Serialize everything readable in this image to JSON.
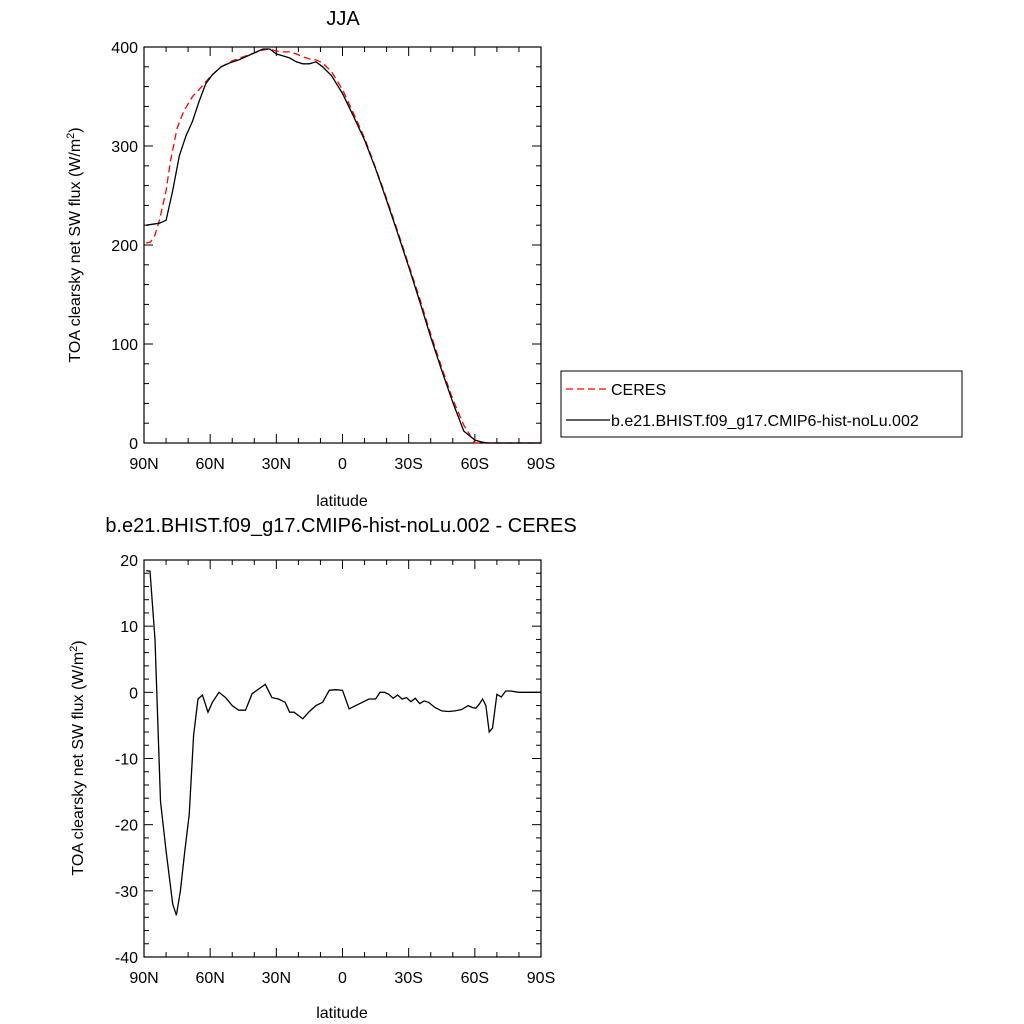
{
  "chart_data": [
    {
      "type": "line",
      "title": "JJA",
      "xlabel": "latitude",
      "ylabel": "TOA clearsky net SW flux (W/m",
      "ylabel_sup": "2",
      "ylabel_close": ")",
      "xlim": [
        90,
        -90
      ],
      "ylim": [
        0,
        400
      ],
      "x_ticks": [
        90,
        60,
        30,
        0,
        -30,
        -60,
        -90
      ],
      "x_tick_labels": [
        "90N",
        "60N",
        "30N",
        "0",
        "30S",
        "60S",
        "90S"
      ],
      "y_ticks": [
        0,
        100,
        200,
        300,
        400
      ],
      "y_tick_labels": [
        "0",
        "100",
        "200",
        "300",
        "400"
      ],
      "grid": false,
      "legend_position": "right",
      "series": [
        {
          "name": "CERES",
          "color": "#ff0000",
          "dash": "dashed",
          "x": [
            89,
            87,
            85,
            83,
            80,
            78,
            75,
            72,
            68,
            65,
            60,
            55,
            50,
            45,
            40,
            36,
            33,
            30,
            27,
            24,
            21,
            18,
            15,
            12,
            9,
            5,
            0,
            -5,
            -10,
            -15,
            -20,
            -25,
            -30,
            -35,
            -40,
            -45,
            -50,
            -55,
            -60,
            -63,
            -66,
            -70,
            -74,
            -78,
            -82,
            -86,
            -90
          ],
          "y": [
            202,
            203,
            210,
            225,
            255,
            285,
            318,
            335,
            350,
            357,
            370,
            380,
            386,
            390,
            394,
            397,
            398,
            396,
            395,
            395,
            393,
            390,
            388,
            387,
            384,
            375,
            357,
            333,
            308,
            278,
            247,
            214,
            180,
            146,
            110,
            76,
            44,
            18,
            0,
            0,
            0,
            0,
            0,
            0,
            0,
            0,
            0
          ]
        },
        {
          "name": "b.e21.BHIST.f09_g17.CMIP6-hist-noLu.002",
          "color": "#000000",
          "dash": "solid",
          "x": [
            89,
            86,
            83,
            80,
            77,
            74,
            71,
            68,
            65,
            62,
            59,
            55,
            51,
            47,
            43,
            39,
            36,
            33,
            30,
            27,
            24,
            21,
            18,
            15,
            12,
            9,
            5,
            0,
            -5,
            -10,
            -15,
            -20,
            -25,
            -30,
            -35,
            -40,
            -45,
            -50,
            -55,
            -60,
            -63,
            -66,
            -70,
            -74,
            -78,
            -82,
            -86,
            -90
          ],
          "y": [
            220,
            221,
            222,
            225,
            255,
            290,
            310,
            325,
            345,
            363,
            372,
            380,
            384,
            387,
            391,
            395,
            398,
            398,
            393,
            391,
            389,
            385,
            383,
            383,
            385,
            380,
            371,
            353,
            330,
            306,
            277,
            245,
            212,
            178,
            143,
            107,
            73,
            41,
            12,
            3,
            1,
            0,
            0,
            0,
            0,
            0,
            0,
            0
          ]
        }
      ]
    },
    {
      "type": "line",
      "title": "b.e21.BHIST.f09_g17.CMIP6-hist-noLu.002 - CERES",
      "xlabel": "latitude",
      "ylabel": "TOA clearsky net SW flux (W/m",
      "ylabel_sup": "2",
      "ylabel_close": ")",
      "xlim": [
        90,
        -90
      ],
      "ylim": [
        -40,
        20
      ],
      "x_ticks": [
        90,
        60,
        30,
        0,
        -30,
        -60,
        -90
      ],
      "x_tick_labels": [
        "90N",
        "60N",
        "30N",
        "0",
        "30S",
        "60S",
        "90S"
      ],
      "y_ticks": [
        -40,
        -30,
        -20,
        -10,
        0,
        10,
        20
      ],
      "y_tick_labels": [
        "-40",
        "-30",
        "-20",
        "-10",
        "0",
        "10",
        "20"
      ],
      "grid": false,
      "series": [
        {
          "color": "#000000",
          "dash": "solid",
          "x": [
            89,
            87.3,
            85,
            82.5,
            80,
            77,
            75.3,
            73.5,
            71.5,
            69.5,
            67.5,
            65.5,
            63.5,
            61,
            59,
            56,
            53,
            50,
            47,
            44,
            41,
            38,
            35,
            32,
            29,
            26,
            24,
            22,
            20,
            18,
            15,
            12,
            9,
            6,
            3,
            0,
            -3,
            -6,
            -9,
            -12,
            -15,
            -17,
            -19,
            -21,
            -23,
            -25,
            -27,
            -29,
            -31,
            -33,
            -35,
            -37,
            -39,
            -42,
            -45,
            -48,
            -51,
            -54,
            -57,
            -59,
            -60.5,
            -62,
            -63.5,
            -65,
            -66.5,
            -68,
            -70,
            -72,
            -74,
            -76,
            -80,
            -84,
            -88,
            -90
          ],
          "y": [
            18.4,
            18.3,
            8,
            -16.5,
            -24,
            -32,
            -33.7,
            -30,
            -24,
            -18.5,
            -6.5,
            -1,
            -0.4,
            -3,
            -1.5,
            0,
            -0.8,
            -2,
            -2.7,
            -2.7,
            -0.2,
            0.5,
            1.2,
            -0.8,
            -1,
            -1.5,
            -3,
            -3,
            -3.5,
            -4,
            -2.9,
            -2,
            -1.5,
            0.3,
            0.4,
            0.3,
            -2.5,
            -2,
            -1.5,
            -1,
            -1,
            0,
            0,
            -0.3,
            -0.9,
            -0.4,
            -1,
            -0.8,
            -1.4,
            -0.9,
            -1.7,
            -1.3,
            -1.5,
            -2.3,
            -2.8,
            -2.9,
            -2.8,
            -2.6,
            -2,
            -2.3,
            -2.4,
            -1.8,
            -1,
            -2,
            -6,
            -5.4,
            -0.3,
            -0.7,
            0.2,
            0.2,
            0,
            0,
            0,
            0
          ]
        }
      ]
    }
  ]
}
